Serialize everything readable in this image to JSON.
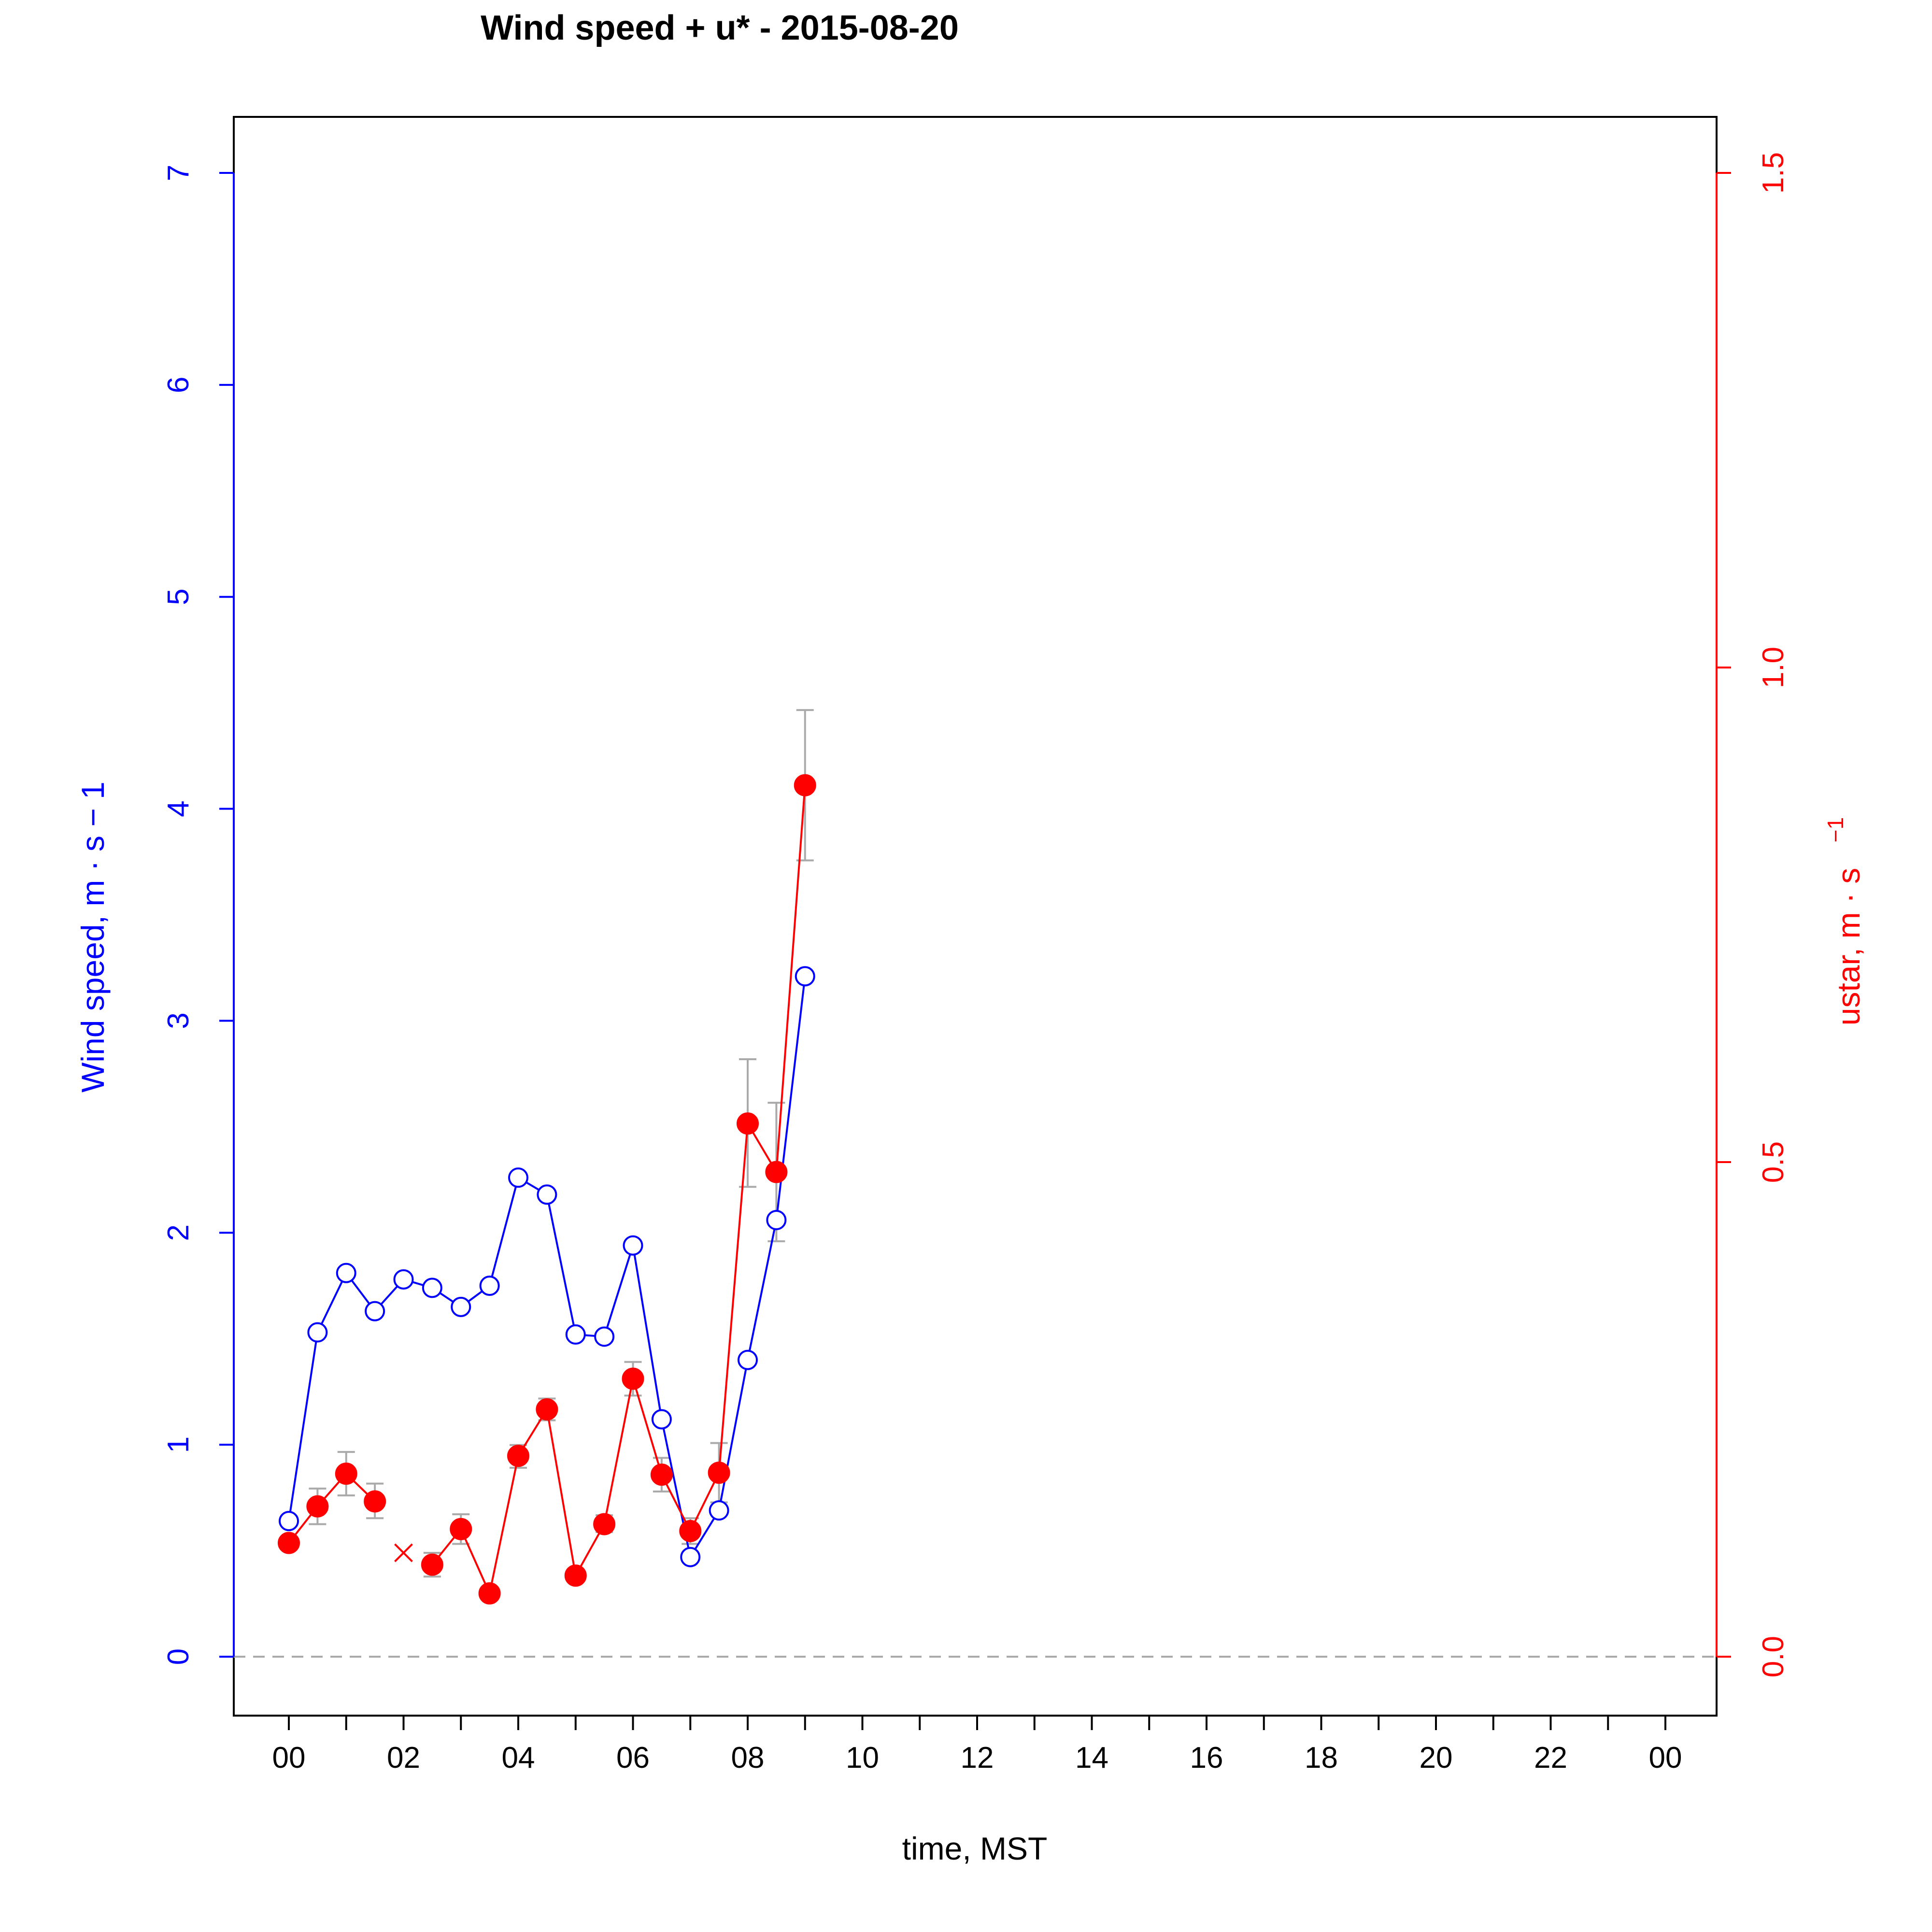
{
  "chart_data": {
    "type": "line",
    "title": "Wind speed + u* -  2015-08-20",
    "xlabel": "time, MST",
    "ylabel_left": "Wind speed, m · s − 1",
    "ylabel_right_main": "ustar, m · s",
    "ylabel_right_exp": "−1",
    "x_unit": "hours",
    "xlim": [
      0,
      24
    ],
    "x_ticks": [
      0,
      1,
      2,
      3,
      4,
      5,
      6,
      7,
      8,
      9,
      10,
      11,
      12,
      13,
      14,
      15,
      16,
      17,
      18,
      19,
      20,
      21,
      22,
      23,
      24
    ],
    "x_tick_labels": [
      {
        "x": 0,
        "label": "00"
      },
      {
        "x": 2,
        "label": "02"
      },
      {
        "x": 4,
        "label": "04"
      },
      {
        "x": 6,
        "label": "06"
      },
      {
        "x": 8,
        "label": "08"
      },
      {
        "x": 10,
        "label": "10"
      },
      {
        "x": 12,
        "label": "12"
      },
      {
        "x": 14,
        "label": "14"
      },
      {
        "x": 16,
        "label": "16"
      },
      {
        "x": 18,
        "label": "18"
      },
      {
        "x": 20,
        "label": "20"
      },
      {
        "x": 22,
        "label": "22"
      },
      {
        "x": 24,
        "label": "00"
      }
    ],
    "y_left_lim": [
      0,
      7
    ],
    "y_left_ticks": [
      {
        "v": 0,
        "label": "0"
      },
      {
        "v": 1,
        "label": "1"
      },
      {
        "v": 2,
        "label": "2"
      },
      {
        "v": 3,
        "label": "3"
      },
      {
        "v": 4,
        "label": "4"
      },
      {
        "v": 5,
        "label": "5"
      },
      {
        "v": 6,
        "label": "6"
      },
      {
        "v": 7,
        "label": "7"
      }
    ],
    "y_right_lim": [
      0,
      1.5
    ],
    "y_right_ticks": [
      {
        "v": 0,
        "label": "0.0"
      },
      {
        "v": 0.5,
        "label": "0.5"
      },
      {
        "v": 1.0,
        "label": "1.0"
      },
      {
        "v": 1.5,
        "label": "1.5"
      }
    ],
    "zero_reference_line": true,
    "grid": false,
    "series": [
      {
        "axis": "left",
        "color": "#0000ff",
        "marker": "open-circle",
        "x": [
          0,
          0.5,
          1,
          1.5,
          2,
          2.5,
          3,
          3.5,
          4,
          4.5,
          5,
          5.5,
          6,
          6.5,
          7,
          7.5,
          8,
          8.5,
          9
        ],
        "y": [
          0.64,
          1.53,
          1.81,
          1.63,
          1.78,
          1.74,
          1.65,
          1.75,
          2.26,
          2.18,
          1.52,
          1.51,
          1.94,
          1.12,
          0.47,
          0.69,
          1.4,
          2.06,
          3.21
        ]
      },
      {
        "axis": "right",
        "color": "#ff0000",
        "marker": "filled-circle",
        "x": [
          0,
          0.5,
          1,
          1.5,
          null,
          2.5,
          3,
          3.5,
          4,
          4.5,
          5,
          5.5,
          6,
          6.5,
          7,
          7.5,
          8,
          8.5,
          9
        ],
        "y": [
          0.115,
          0.152,
          0.185,
          0.157,
          null,
          0.093,
          0.129,
          0.064,
          0.203,
          0.25,
          0.082,
          0.134,
          0.281,
          0.184,
          0.127,
          0.186,
          0.539,
          0.49,
          0.881
        ],
        "errors_low": [
          null,
          0.134,
          0.163,
          0.14,
          null,
          0.081,
          0.114,
          null,
          0.191,
          0.239,
          null,
          0.126,
          0.264,
          0.167,
          0.114,
          0.156,
          0.475,
          0.42,
          0.805
        ],
        "errors_high": [
          null,
          0.17,
          0.207,
          0.175,
          null,
          0.105,
          0.144,
          null,
          0.214,
          0.261,
          null,
          0.143,
          0.298,
          0.201,
          0.14,
          0.216,
          0.604,
          0.56,
          0.957
        ]
      },
      {
        "axis": "right",
        "color": "#ff0000",
        "marker": "cross",
        "x": [
          2
        ],
        "y": [
          0.105
        ]
      }
    ]
  }
}
